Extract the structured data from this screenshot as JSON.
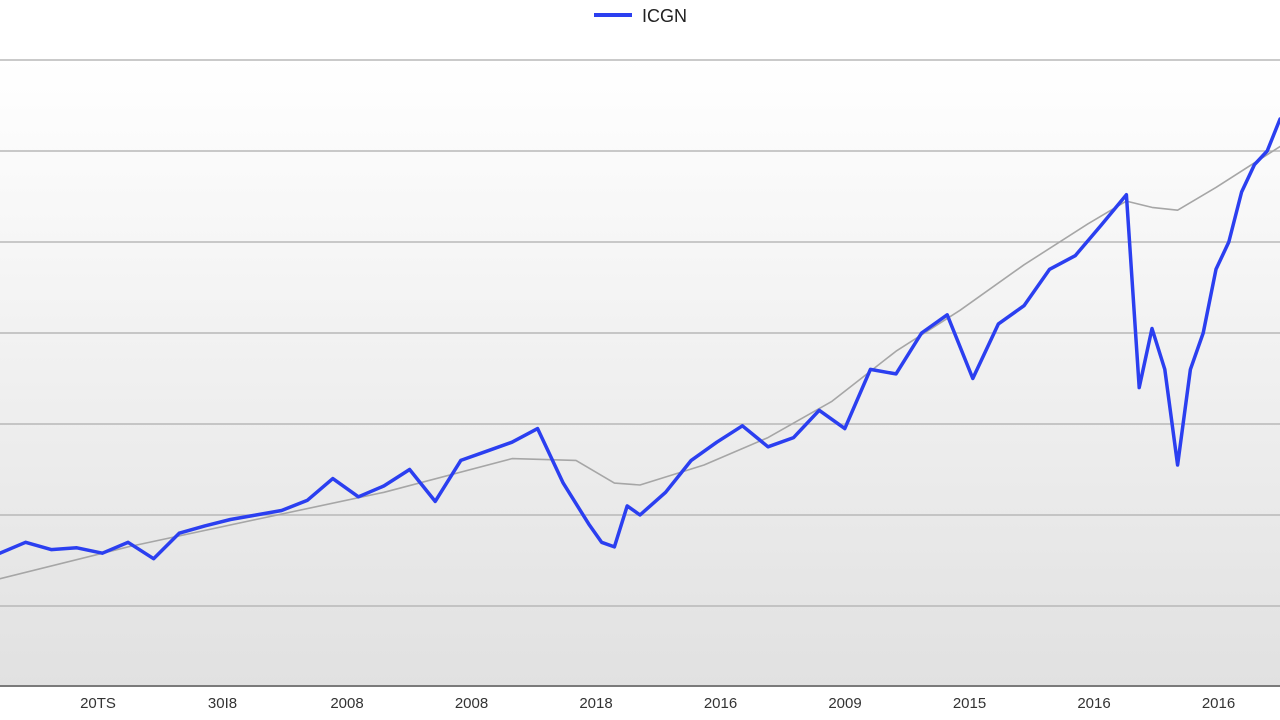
{
  "chart_data": {
    "type": "line",
    "title": "",
    "xlabel": "",
    "ylabel": "",
    "legend": {
      "position": "top-center",
      "entries": [
        {
          "name": "ICGN",
          "color": "#2b3ff0"
        }
      ]
    },
    "x_tick_labels": [
      "20TS",
      "30I8",
      "2008",
      "2008",
      "2018",
      "2016",
      "2009",
      "2015",
      "2016",
      "2016"
    ],
    "grid": true,
    "ylim": [
      0,
      7
    ],
    "xlim": [
      0,
      100
    ],
    "series": [
      {
        "name": "ICGN",
        "color": "#2b3ff0",
        "points": [
          [
            0,
            1.58
          ],
          [
            2,
            1.7
          ],
          [
            4,
            1.62
          ],
          [
            6,
            1.64
          ],
          [
            8,
            1.58
          ],
          [
            10,
            1.7
          ],
          [
            12,
            1.52
          ],
          [
            14,
            1.8
          ],
          [
            16,
            1.88
          ],
          [
            18,
            1.95
          ],
          [
            20,
            2.0
          ],
          [
            22,
            2.05
          ],
          [
            24,
            2.16
          ],
          [
            26,
            2.4
          ],
          [
            28,
            2.2
          ],
          [
            30,
            2.32
          ],
          [
            32,
            2.5
          ],
          [
            34,
            2.15
          ],
          [
            36,
            2.6
          ],
          [
            38,
            2.7
          ],
          [
            40,
            2.8
          ],
          [
            42,
            2.95
          ],
          [
            44,
            2.35
          ],
          [
            46,
            1.9
          ],
          [
            47,
            1.7
          ],
          [
            48,
            1.65
          ],
          [
            49,
            2.1
          ],
          [
            50,
            2.0
          ],
          [
            52,
            2.25
          ],
          [
            54,
            2.6
          ],
          [
            56,
            2.8
          ],
          [
            58,
            2.98
          ],
          [
            60,
            2.75
          ],
          [
            62,
            2.85
          ],
          [
            64,
            3.15
          ],
          [
            66,
            2.95
          ],
          [
            68,
            3.6
          ],
          [
            70,
            3.55
          ],
          [
            72,
            4.0
          ],
          [
            74,
            4.2
          ],
          [
            76,
            3.5
          ],
          [
            78,
            4.1
          ],
          [
            80,
            4.3
          ],
          [
            82,
            4.7
          ],
          [
            84,
            4.85
          ],
          [
            86,
            5.18
          ],
          [
            88,
            5.52
          ],
          [
            89,
            3.4
          ],
          [
            90,
            4.05
          ],
          [
            91,
            3.6
          ],
          [
            92,
            2.55
          ],
          [
            93,
            3.6
          ],
          [
            94,
            4.0
          ],
          [
            95,
            4.7
          ],
          [
            96,
            5.0
          ],
          [
            97,
            5.55
          ],
          [
            98,
            5.85
          ],
          [
            99,
            6.0
          ],
          [
            100,
            6.35
          ]
        ]
      },
      {
        "name": "",
        "color": "#a6a6a6",
        "points": [
          [
            0,
            1.3
          ],
          [
            10,
            1.65
          ],
          [
            20,
            1.95
          ],
          [
            30,
            2.25
          ],
          [
            40,
            2.62
          ],
          [
            45,
            2.6
          ],
          [
            48,
            2.35
          ],
          [
            50,
            2.33
          ],
          [
            55,
            2.55
          ],
          [
            60,
            2.85
          ],
          [
            65,
            3.25
          ],
          [
            70,
            3.8
          ],
          [
            75,
            4.25
          ],
          [
            80,
            4.75
          ],
          [
            85,
            5.2
          ],
          [
            88,
            5.45
          ],
          [
            90,
            5.38
          ],
          [
            92,
            5.35
          ],
          [
            95,
            5.6
          ],
          [
            100,
            6.05
          ]
        ]
      }
    ]
  }
}
